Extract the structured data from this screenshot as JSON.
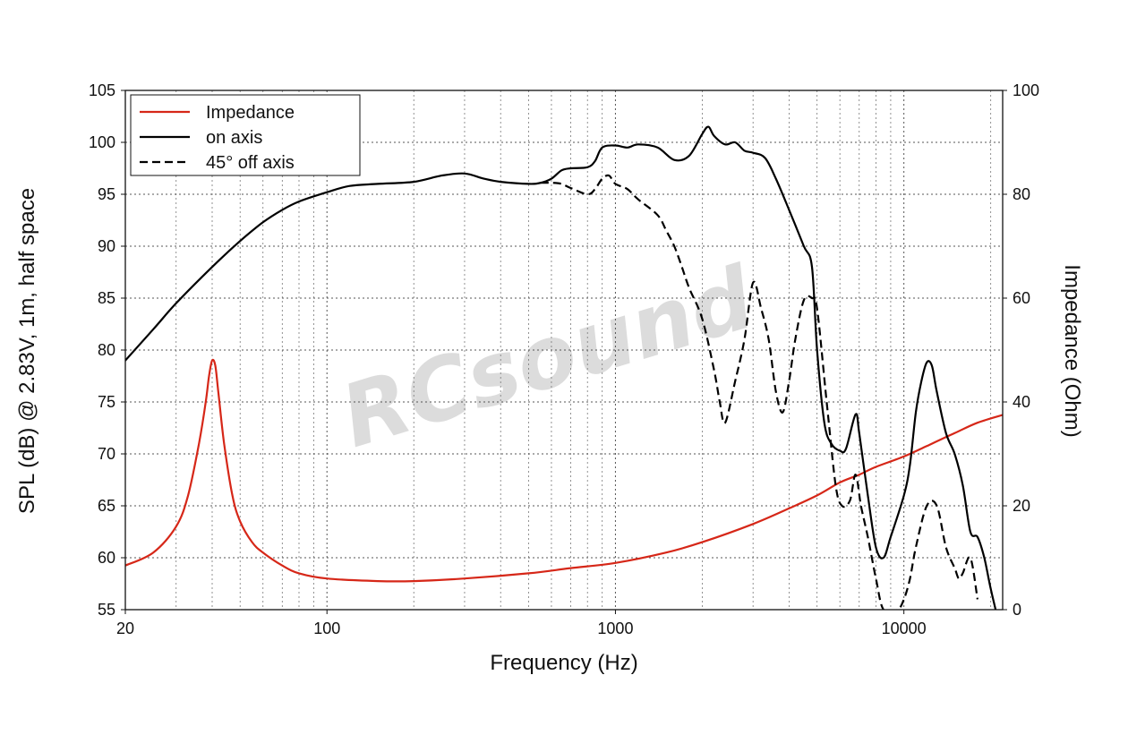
{
  "watermark": "RCsound",
  "chart_data": {
    "type": "line",
    "xlabel": "Frequency (Hz)",
    "ylabel": "SPL (dB) @ 2.83V, 1m, half space",
    "y2label": "Impedance (Ohm)",
    "xscale": "log",
    "xlim": [
      20,
      22000
    ],
    "ylim": [
      55,
      105
    ],
    "y2lim": [
      0,
      100
    ],
    "x_ticks": [
      20,
      100,
      1000,
      10000
    ],
    "x_tick_labels": [
      "20",
      "100",
      "1000",
      "10000"
    ],
    "y_ticks": [
      55,
      60,
      65,
      70,
      75,
      80,
      85,
      90,
      95,
      100,
      105
    ],
    "y_tick_labels": [
      "55",
      "60",
      "65",
      "70",
      "75",
      "80",
      "85",
      "90",
      "95",
      "100",
      "105"
    ],
    "y2_ticks": [
      0,
      20,
      40,
      60,
      80,
      100
    ],
    "y2_tick_labels": [
      "0",
      "20",
      "40",
      "60",
      "80",
      "100"
    ],
    "grid": true,
    "legend_position": "top-left",
    "colors": {
      "impedance": "#d62718",
      "on_axis": "#000000",
      "off_axis": "#000000"
    },
    "series": [
      {
        "name": "Impedance",
        "axis": "right",
        "style": "solid",
        "color": "#d62718",
        "points": [
          [
            20,
            8.5
          ],
          [
            25,
            11
          ],
          [
            30,
            16
          ],
          [
            33,
            22
          ],
          [
            36,
            32
          ],
          [
            38,
            40
          ],
          [
            39,
            45
          ],
          [
            40,
            48
          ],
          [
            41,
            47
          ],
          [
            42,
            42
          ],
          [
            44,
            32
          ],
          [
            47,
            22
          ],
          [
            50,
            17
          ],
          [
            55,
            13
          ],
          [
            60,
            11
          ],
          [
            70,
            8.5
          ],
          [
            80,
            7
          ],
          [
            100,
            6
          ],
          [
            150,
            5.5
          ],
          [
            200,
            5.5
          ],
          [
            300,
            6
          ],
          [
            500,
            7
          ],
          [
            700,
            8
          ],
          [
            1000,
            9
          ],
          [
            1500,
            11
          ],
          [
            2000,
            13
          ],
          [
            3000,
            16.5
          ],
          [
            4000,
            19.5
          ],
          [
            5000,
            22
          ],
          [
            6000,
            24.5
          ],
          [
            7000,
            26
          ],
          [
            8000,
            27.5
          ],
          [
            10000,
            29.5
          ],
          [
            12000,
            31.5
          ],
          [
            15000,
            34
          ],
          [
            18000,
            36
          ],
          [
            22000,
            37.5
          ]
        ]
      },
      {
        "name": "on axis",
        "axis": "left",
        "style": "solid",
        "color": "#000000",
        "points": [
          [
            20,
            79
          ],
          [
            25,
            82
          ],
          [
            30,
            84.5
          ],
          [
            40,
            88
          ],
          [
            50,
            90.5
          ],
          [
            60,
            92.3
          ],
          [
            70,
            93.5
          ],
          [
            80,
            94.3
          ],
          [
            100,
            95.2
          ],
          [
            120,
            95.8
          ],
          [
            150,
            96
          ],
          [
            200,
            96.2
          ],
          [
            250,
            96.8
          ],
          [
            300,
            97
          ],
          [
            350,
            96.5
          ],
          [
            400,
            96.2
          ],
          [
            500,
            96
          ],
          [
            550,
            96.1
          ],
          [
            600,
            96.5
          ],
          [
            650,
            97.3
          ],
          [
            700,
            97.5
          ],
          [
            800,
            97.6
          ],
          [
            850,
            98.2
          ],
          [
            900,
            99.5
          ],
          [
            1000,
            99.7
          ],
          [
            1100,
            99.5
          ],
          [
            1200,
            99.8
          ],
          [
            1400,
            99.5
          ],
          [
            1600,
            98.3
          ],
          [
            1800,
            98.7
          ],
          [
            2000,
            100.8
          ],
          [
            2100,
            101.5
          ],
          [
            2200,
            100.6
          ],
          [
            2400,
            99.8
          ],
          [
            2600,
            100
          ],
          [
            2800,
            99.2
          ],
          [
            3000,
            99
          ],
          [
            3300,
            98.5
          ],
          [
            3600,
            96.5
          ],
          [
            4000,
            93.5
          ],
          [
            4500,
            90
          ],
          [
            4800,
            88
          ],
          [
            5000,
            80
          ],
          [
            5300,
            73
          ],
          [
            5600,
            71
          ],
          [
            6000,
            70.3
          ],
          [
            6300,
            70.5
          ],
          [
            6800,
            73.8
          ],
          [
            7000,
            72
          ],
          [
            7500,
            66
          ],
          [
            8000,
            61
          ],
          [
            8500,
            60
          ],
          [
            9000,
            62
          ],
          [
            10000,
            66
          ],
          [
            10500,
            69
          ],
          [
            11000,
            74
          ],
          [
            11500,
            77
          ],
          [
            12000,
            78.8
          ],
          [
            12500,
            78.5
          ],
          [
            13000,
            76
          ],
          [
            14000,
            72
          ],
          [
            15000,
            70
          ],
          [
            16000,
            67
          ],
          [
            17000,
            62.5
          ],
          [
            18000,
            62
          ],
          [
            19000,
            60
          ],
          [
            20000,
            57
          ],
          [
            21000,
            54.5
          ]
        ]
      },
      {
        "name": "45° off axis",
        "axis": "left",
        "style": "dashed",
        "color": "#000000",
        "points": [
          [
            550,
            96.1
          ],
          [
            600,
            96.1
          ],
          [
            650,
            96
          ],
          [
            700,
            95.6
          ],
          [
            800,
            95
          ],
          [
            850,
            95.5
          ],
          [
            900,
            96.5
          ],
          [
            950,
            96.8
          ],
          [
            1000,
            96
          ],
          [
            1100,
            95.5
          ],
          [
            1200,
            94.5
          ],
          [
            1400,
            93
          ],
          [
            1500,
            91.5
          ],
          [
            1600,
            90
          ],
          [
            1700,
            88
          ],
          [
            1800,
            86
          ],
          [
            2000,
            83
          ],
          [
            2200,
            78
          ],
          [
            2300,
            75
          ],
          [
            2400,
            73
          ],
          [
            2600,
            77
          ],
          [
            2800,
            81
          ],
          [
            3000,
            86.5
          ],
          [
            3200,
            84
          ],
          [
            3400,
            81
          ],
          [
            3600,
            76
          ],
          [
            3800,
            74
          ],
          [
            4000,
            77
          ],
          [
            4200,
            81
          ],
          [
            4500,
            84.8
          ],
          [
            4800,
            85
          ],
          [
            5000,
            84
          ],
          [
            5400,
            75
          ],
          [
            5800,
            67
          ],
          [
            6100,
            65
          ],
          [
            6500,
            65.5
          ],
          [
            6800,
            68
          ],
          [
            7100,
            65
          ],
          [
            7500,
            62
          ],
          [
            8000,
            58
          ],
          [
            8500,
            55
          ],
          [
            9500,
            55
          ],
          [
            10000,
            56
          ],
          [
            10500,
            58
          ],
          [
            11000,
            61
          ],
          [
            12000,
            65
          ],
          [
            13000,
            65
          ],
          [
            14000,
            61
          ],
          [
            15000,
            59
          ],
          [
            15500,
            58
          ],
          [
            16000,
            58.5
          ],
          [
            17000,
            60
          ],
          [
            18000,
            56
          ]
        ]
      }
    ]
  }
}
